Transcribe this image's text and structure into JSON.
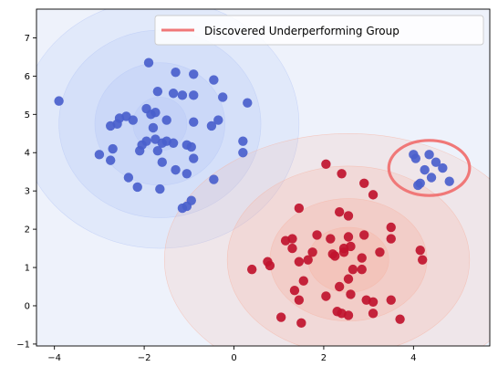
{
  "chart_data": {
    "type": "scatter",
    "title": "",
    "xlabel": "",
    "ylabel": "",
    "xlim": [
      -4.4,
      5.7
    ],
    "ylim": [
      -1.05,
      7.75
    ],
    "xticks": [
      -4,
      -2,
      0,
      2,
      4
    ],
    "yticks": [
      -1,
      0,
      1,
      2,
      3,
      4,
      5,
      6,
      7
    ],
    "xtick_labels": [
      "−4",
      "−2",
      "0",
      "2",
      "4"
    ],
    "ytick_labels": [
      "−1",
      "0",
      "1",
      "2",
      "3",
      "4",
      "5",
      "6",
      "7"
    ],
    "grid": false,
    "legend_position": "top-right",
    "colors": {
      "blue_points": "#4a5fcc",
      "red_points": "#c0132e",
      "ellipse": "#f07878",
      "background": "#eef2fb"
    },
    "background_density": [
      {
        "center": [
          -1.65,
          4.75
        ],
        "color": "#b8c8f7",
        "levels": [
          {
            "rx": 3.1,
            "ry": 3.25,
            "alpha": 0.22
          },
          {
            "rx": 2.25,
            "ry": 2.45,
            "alpha": 0.28
          },
          {
            "rx": 1.45,
            "ry": 1.6,
            "alpha": 0.32
          },
          {
            "rx": 0.6,
            "ry": 0.7,
            "alpha": 0.35
          }
        ]
      },
      {
        "center": [
          2.55,
          1.2
        ],
        "color": "#f6b4a3",
        "levels": [
          {
            "rx": 4.1,
            "ry": 3.3,
            "alpha": 0.18
          },
          {
            "rx": 2.7,
            "ry": 2.45,
            "alpha": 0.25
          },
          {
            "rx": 1.75,
            "ry": 1.6,
            "alpha": 0.3
          },
          {
            "rx": 0.9,
            "ry": 0.85,
            "alpha": 0.35
          }
        ]
      }
    ],
    "series": [
      {
        "points": [
          [
            -3.9,
            5.35
          ],
          [
            -1.9,
            6.35
          ],
          [
            -1.3,
            6.1
          ],
          [
            -0.9,
            6.05
          ],
          [
            -0.45,
            5.9
          ],
          [
            -1.7,
            5.6
          ],
          [
            -1.35,
            5.55
          ],
          [
            -1.15,
            5.5
          ],
          [
            -0.9,
            5.5
          ],
          [
            -0.25,
            5.45
          ],
          [
            0.3,
            5.3
          ],
          [
            -1.95,
            5.15
          ],
          [
            -1.75,
            5.05
          ],
          [
            -1.85,
            5.0
          ],
          [
            -2.4,
            4.95
          ],
          [
            -2.55,
            4.9
          ],
          [
            -2.25,
            4.85
          ],
          [
            -1.5,
            4.85
          ],
          [
            -2.6,
            4.75
          ],
          [
            -2.75,
            4.7
          ],
          [
            -0.9,
            4.8
          ],
          [
            -0.35,
            4.85
          ],
          [
            -0.5,
            4.7
          ],
          [
            -1.8,
            4.65
          ],
          [
            -1.75,
            4.35
          ],
          [
            -1.95,
            4.3
          ],
          [
            -2.05,
            4.2
          ],
          [
            -1.6,
            4.25
          ],
          [
            -1.5,
            4.3
          ],
          [
            -1.35,
            4.25
          ],
          [
            -1.05,
            4.2
          ],
          [
            -0.95,
            4.15
          ],
          [
            -2.7,
            4.1
          ],
          [
            -2.1,
            4.05
          ],
          [
            -1.7,
            4.05
          ],
          [
            0.2,
            4.3
          ],
          [
            0.2,
            4.0
          ],
          [
            -3.0,
            3.95
          ],
          [
            -0.9,
            3.85
          ],
          [
            -2.75,
            3.8
          ],
          [
            -1.6,
            3.75
          ],
          [
            -1.3,
            3.55
          ],
          [
            -1.05,
            3.45
          ],
          [
            -2.35,
            3.35
          ],
          [
            -0.45,
            3.3
          ],
          [
            -2.15,
            3.1
          ],
          [
            -1.65,
            3.05
          ],
          [
            -0.95,
            2.75
          ],
          [
            -1.05,
            2.6
          ],
          [
            -1.15,
            2.55
          ]
        ]
      },
      {
        "points": [
          [
            2.05,
            3.7
          ],
          [
            2.4,
            3.45
          ],
          [
            2.9,
            3.2
          ],
          [
            3.1,
            2.9
          ],
          [
            1.45,
            2.55
          ],
          [
            2.35,
            2.45
          ],
          [
            2.55,
            2.35
          ],
          [
            3.5,
            2.05
          ],
          [
            3.5,
            1.75
          ],
          [
            1.85,
            1.85
          ],
          [
            2.15,
            1.75
          ],
          [
            2.55,
            1.8
          ],
          [
            2.9,
            1.85
          ],
          [
            1.3,
            1.75
          ],
          [
            1.15,
            1.7
          ],
          [
            1.3,
            1.5
          ],
          [
            2.45,
            1.5
          ],
          [
            2.6,
            1.55
          ],
          [
            1.75,
            1.4
          ],
          [
            2.2,
            1.35
          ],
          [
            2.45,
            1.4
          ],
          [
            3.25,
            1.4
          ],
          [
            4.15,
            1.45
          ],
          [
            4.2,
            1.2
          ],
          [
            0.75,
            1.15
          ],
          [
            0.8,
            1.05
          ],
          [
            1.45,
            1.15
          ],
          [
            2.25,
            1.3
          ],
          [
            2.85,
            1.25
          ],
          [
            1.65,
            1.2
          ],
          [
            0.4,
            0.95
          ],
          [
            2.65,
            0.95
          ],
          [
            2.85,
            0.95
          ],
          [
            1.55,
            0.65
          ],
          [
            2.55,
            0.7
          ],
          [
            2.35,
            0.5
          ],
          [
            1.35,
            0.4
          ],
          [
            2.05,
            0.25
          ],
          [
            2.6,
            0.3
          ],
          [
            2.95,
            0.15
          ],
          [
            3.1,
            0.1
          ],
          [
            3.5,
            0.15
          ],
          [
            1.45,
            0.15
          ],
          [
            2.3,
            -0.15
          ],
          [
            2.4,
            -0.2
          ],
          [
            2.55,
            -0.25
          ],
          [
            3.1,
            -0.2
          ],
          [
            3.7,
            -0.35
          ],
          [
            1.05,
            -0.3
          ],
          [
            1.5,
            -0.45
          ]
        ]
      },
      {
        "points": [
          [
            4.0,
            3.95
          ],
          [
            4.05,
            3.85
          ],
          [
            4.35,
            3.95
          ],
          [
            4.5,
            3.75
          ],
          [
            4.65,
            3.6
          ],
          [
            4.25,
            3.55
          ],
          [
            4.4,
            3.35
          ],
          [
            4.15,
            3.2
          ],
          [
            4.1,
            3.15
          ],
          [
            4.8,
            3.25
          ]
        ]
      }
    ],
    "highlight": {
      "shape": "ellipse",
      "center": [
        4.35,
        3.6
      ],
      "rx": 0.9,
      "ry": 0.72,
      "label": "Discovered Underperforming Group"
    }
  }
}
